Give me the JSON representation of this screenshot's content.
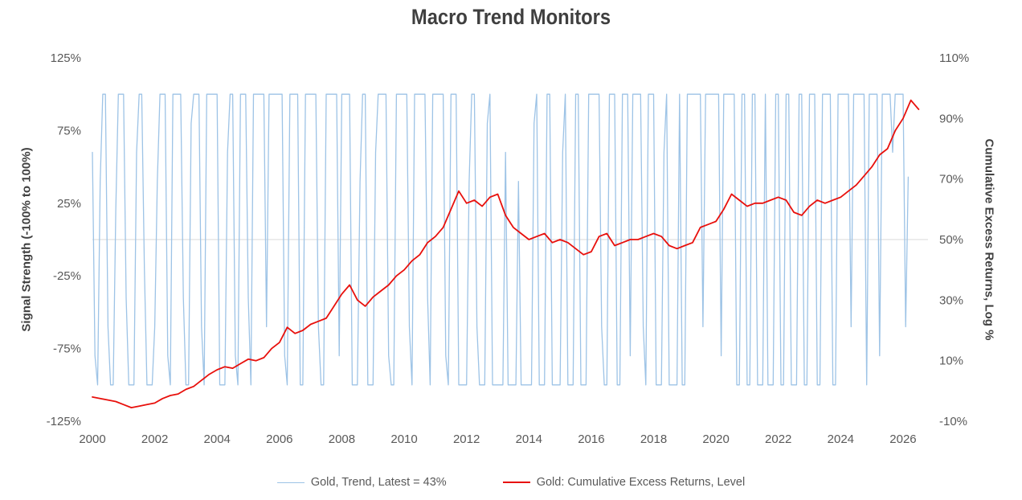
{
  "chart_data": {
    "type": "line",
    "title": "Macro Trend Monitors",
    "x_axis": {
      "ticks": [
        2000,
        2002,
        2004,
        2006,
        2008,
        2010,
        2012,
        2014,
        2016,
        2018,
        2020,
        2022,
        2024,
        2026
      ],
      "range": [
        2000,
        2026.8
      ]
    },
    "left_axis": {
      "label": "Signal Strength (-100% to 100%)",
      "tick_labels": [
        "125%",
        "75%",
        "25%",
        "-25%",
        "-75%",
        "-125%"
      ],
      "tick_values": [
        125,
        75,
        25,
        -25,
        -75,
        -125
      ],
      "range": [
        -125,
        125
      ]
    },
    "right_axis": {
      "label": "Cumulative Excess Returns, Log %",
      "tick_labels": [
        "110%",
        "90%",
        "70%",
        "50%",
        "30%",
        "10%",
        "-10%"
      ],
      "tick_values": [
        110,
        90,
        70,
        50,
        30,
        10,
        -10
      ],
      "range": [
        -10,
        110
      ]
    },
    "gridline": {
      "left_value": 0,
      "color": "#d9d9d9"
    },
    "legend_position": "bottom",
    "series": [
      {
        "name": "Gold, Trend, Latest = 43%",
        "axis": "left",
        "color": "#9dc3e6",
        "stroke_width": 1.3,
        "start_year": 2000,
        "step_years": 0.083333,
        "latest": 43,
        "values": [
          60,
          -80,
          -100,
          40,
          100,
          100,
          -60,
          -100,
          -100,
          20,
          100,
          100,
          100,
          -40,
          -100,
          -100,
          -100,
          60,
          100,
          100,
          -20,
          -100,
          -100,
          -100,
          -60,
          40,
          100,
          100,
          100,
          -80,
          -100,
          100,
          100,
          100,
          100,
          -40,
          -100,
          -100,
          80,
          100,
          100,
          100,
          -60,
          -100,
          100,
          100,
          100,
          100,
          100,
          -100,
          -100,
          -100,
          60,
          100,
          100,
          -80,
          -100,
          100,
          100,
          100,
          -40,
          -100,
          100,
          100,
          100,
          100,
          100,
          -60,
          100,
          100,
          100,
          100,
          100,
          100,
          -80,
          -100,
          100,
          100,
          100,
          100,
          -100,
          -100,
          100,
          100,
          100,
          100,
          100,
          -60,
          -100,
          -100,
          100,
          100,
          100,
          100,
          100,
          -80,
          100,
          100,
          100,
          100,
          -100,
          -100,
          -100,
          40,
          100,
          100,
          -100,
          -100,
          -100,
          60,
          100,
          100,
          100,
          100,
          -80,
          -100,
          -100,
          100,
          100,
          100,
          100,
          100,
          -60,
          -100,
          100,
          100,
          100,
          100,
          100,
          -40,
          -100,
          100,
          100,
          100,
          100,
          100,
          -80,
          -100,
          100,
          100,
          100,
          -100,
          -100,
          -100,
          -100,
          40,
          100,
          100,
          -60,
          -100,
          -100,
          -100,
          80,
          100,
          -100,
          -100,
          -100,
          -100,
          -100,
          60,
          -100,
          -100,
          -100,
          -100,
          40,
          -100,
          -100,
          -100,
          -100,
          -100,
          80,
          100,
          -100,
          -100,
          -100,
          100,
          100,
          -100,
          -100,
          -100,
          -100,
          60,
          100,
          -100,
          -100,
          -100,
          100,
          100,
          -100,
          -100,
          -100,
          100,
          100,
          100,
          100,
          100,
          -60,
          -100,
          -100,
          100,
          100,
          100,
          -100,
          -100,
          100,
          100,
          100,
          -80,
          100,
          100,
          100,
          100,
          -60,
          -100,
          100,
          100,
          100,
          -100,
          -100,
          -100,
          60,
          100,
          -100,
          -100,
          -100,
          -100,
          100,
          -100,
          -100,
          100,
          100,
          100,
          100,
          100,
          100,
          -60,
          100,
          100,
          100,
          100,
          100,
          100,
          -80,
          100,
          100,
          100,
          100,
          100,
          -100,
          -100,
          100,
          100,
          -100,
          -100,
          100,
          100,
          -100,
          -100,
          -100,
          100,
          -100,
          -100,
          -100,
          100,
          100,
          -100,
          -100,
          100,
          100,
          -100,
          -100,
          -100,
          100,
          100,
          -100,
          -100,
          100,
          100,
          100,
          -100,
          -100,
          100,
          100,
          100,
          100,
          -100,
          -100,
          100,
          100,
          100,
          100,
          100,
          -60,
          100,
          100,
          100,
          100,
          100,
          -100,
          100,
          100,
          100,
          100,
          -80,
          100,
          100,
          100,
          100,
          60,
          100,
          100,
          100,
          100,
          -60,
          43
        ]
      },
      {
        "name": "Gold: Cumulative Excess Returns, Level",
        "axis": "right",
        "color": "#e8100c",
        "stroke_width": 1.8,
        "start_year": 2000,
        "step_years": 0.25,
        "values": [
          -2,
          -2.5,
          -3,
          -3.5,
          -4.5,
          -5.5,
          -5,
          -4.5,
          -4,
          -2.5,
          -1.5,
          -1,
          0.5,
          1.5,
          3.5,
          5.5,
          7,
          8,
          7.5,
          9,
          10.5,
          10,
          11,
          14,
          16,
          21,
          19,
          20,
          22,
          23,
          24,
          28,
          32,
          35,
          30,
          28,
          31,
          33,
          35,
          38,
          40,
          43,
          45,
          49,
          51,
          54,
          60,
          66,
          62,
          63,
          61,
          64,
          65,
          58,
          54,
          52,
          50,
          51,
          52,
          49,
          50,
          49,
          47,
          45,
          46,
          51,
          52,
          48,
          49,
          50,
          50,
          51,
          52,
          51,
          48,
          47,
          48,
          49,
          54,
          55,
          56,
          60,
          65,
          63,
          61,
          62,
          62,
          63,
          64,
          63,
          59,
          58,
          61,
          63,
          62,
          63,
          64,
          66,
          68,
          71,
          74,
          78,
          80,
          86,
          90,
          96,
          93
        ]
      }
    ]
  },
  "legend": {
    "items": [
      {
        "label": "Gold, Trend, Latest = 43%",
        "color": "#9dc3e6"
      },
      {
        "label": "Gold: Cumulative Excess Returns, Level",
        "color": "#e8100c"
      }
    ]
  }
}
